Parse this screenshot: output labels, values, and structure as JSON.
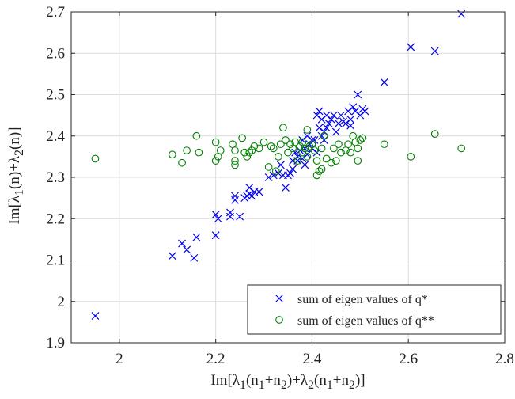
{
  "chart_data": {
    "type": "scatter",
    "xlabel_html": "Im[λ<sub>1</sub>(n<sub>1</sub>+n<sub>2</sub>)+λ<sub>2</sub>(n<sub>1</sub>+n<sub>2</sub>)]",
    "ylabel_html": "Im[λ<sub>1</sub>(n)+λ<sub>2</sub>(n)]",
    "xlim": [
      1.9,
      2.8
    ],
    "ylim": [
      1.9,
      2.7
    ],
    "xticks": [
      2,
      2.2,
      2.4,
      2.6,
      2.8
    ],
    "xtick_labels": [
      "2",
      "2.2",
      "2.4",
      "2.6",
      "2.8"
    ],
    "yticks": [
      1.9,
      2,
      2.1,
      2.2,
      2.3,
      2.4,
      2.5,
      2.6,
      2.7
    ],
    "ytick_labels": [
      "1.9",
      "2",
      "2.1",
      "2.2",
      "2.3",
      "2.4",
      "2.5",
      "2.6",
      "2.7"
    ],
    "grid": true,
    "legend_position": "bottom-right",
    "series": [
      {
        "name": "sum of eigen values of q*",
        "marker": "x",
        "color": "#0000ee",
        "points": [
          [
            1.95,
            1.965
          ],
          [
            2.11,
            2.11
          ],
          [
            2.13,
            2.14
          ],
          [
            2.14,
            2.125
          ],
          [
            2.155,
            2.105
          ],
          [
            2.16,
            2.155
          ],
          [
            2.2,
            2.16
          ],
          [
            2.2,
            2.21
          ],
          [
            2.205,
            2.2
          ],
          [
            2.23,
            2.205
          ],
          [
            2.23,
            2.215
          ],
          [
            2.24,
            2.245
          ],
          [
            2.24,
            2.255
          ],
          [
            2.25,
            2.205
          ],
          [
            2.26,
            2.25
          ],
          [
            2.265,
            2.255
          ],
          [
            2.27,
            2.26
          ],
          [
            2.27,
            2.275
          ],
          [
            2.275,
            2.255
          ],
          [
            2.28,
            2.265
          ],
          [
            2.29,
            2.265
          ],
          [
            2.31,
            2.3
          ],
          [
            2.32,
            2.305
          ],
          [
            2.33,
            2.31
          ],
          [
            2.335,
            2.33
          ],
          [
            2.34,
            2.305
          ],
          [
            2.345,
            2.275
          ],
          [
            2.35,
            2.305
          ],
          [
            2.355,
            2.31
          ],
          [
            2.36,
            2.32
          ],
          [
            2.36,
            2.34
          ],
          [
            2.365,
            2.36
          ],
          [
            2.37,
            2.34
          ],
          [
            2.37,
            2.35
          ],
          [
            2.375,
            2.365
          ],
          [
            2.38,
            2.345
          ],
          [
            2.38,
            2.39
          ],
          [
            2.385,
            2.33
          ],
          [
            2.385,
            2.37
          ],
          [
            2.39,
            2.355
          ],
          [
            2.39,
            2.4
          ],
          [
            2.395,
            2.38
          ],
          [
            2.4,
            2.39
          ],
          [
            2.4,
            2.37
          ],
          [
            2.405,
            2.39
          ],
          [
            2.41,
            2.36
          ],
          [
            2.41,
            2.45
          ],
          [
            2.415,
            2.46
          ],
          [
            2.415,
            2.42
          ],
          [
            2.42,
            2.4
          ],
          [
            2.42,
            2.44
          ],
          [
            2.425,
            2.39
          ],
          [
            2.425,
            2.41
          ],
          [
            2.43,
            2.42
          ],
          [
            2.43,
            2.45
          ],
          [
            2.435,
            2.43
          ],
          [
            2.44,
            2.44
          ],
          [
            2.445,
            2.45
          ],
          [
            2.45,
            2.41
          ],
          [
            2.455,
            2.43
          ],
          [
            2.46,
            2.45
          ],
          [
            2.465,
            2.435
          ],
          [
            2.47,
            2.43
          ],
          [
            2.475,
            2.46
          ],
          [
            2.48,
            2.44
          ],
          [
            2.48,
            2.425
          ],
          [
            2.485,
            2.47
          ],
          [
            2.49,
            2.46
          ],
          [
            2.495,
            2.5
          ],
          [
            2.5,
            2.45
          ],
          [
            2.505,
            2.465
          ],
          [
            2.51,
            2.46
          ],
          [
            2.55,
            2.53
          ],
          [
            2.605,
            2.615
          ],
          [
            2.655,
            2.605
          ],
          [
            2.71,
            2.695
          ]
        ]
      },
      {
        "name": "sum of eigen values of q**",
        "marker": "o",
        "color": "#008000",
        "points": [
          [
            1.95,
            2.345
          ],
          [
            2.11,
            2.355
          ],
          [
            2.13,
            2.335
          ],
          [
            2.14,
            2.365
          ],
          [
            2.16,
            2.4
          ],
          [
            2.165,
            2.36
          ],
          [
            2.2,
            2.34
          ],
          [
            2.2,
            2.385
          ],
          [
            2.205,
            2.35
          ],
          [
            2.21,
            2.365
          ],
          [
            2.235,
            2.38
          ],
          [
            2.24,
            2.34
          ],
          [
            2.24,
            2.33
          ],
          [
            2.24,
            2.365
          ],
          [
            2.255,
            2.395
          ],
          [
            2.26,
            2.36
          ],
          [
            2.265,
            2.35
          ],
          [
            2.27,
            2.36
          ],
          [
            2.275,
            2.365
          ],
          [
            2.28,
            2.375
          ],
          [
            2.29,
            2.37
          ],
          [
            2.3,
            2.385
          ],
          [
            2.31,
            2.325
          ],
          [
            2.315,
            2.375
          ],
          [
            2.32,
            2.37
          ],
          [
            2.325,
            2.315
          ],
          [
            2.33,
            2.35
          ],
          [
            2.335,
            2.38
          ],
          [
            2.34,
            2.42
          ],
          [
            2.345,
            2.39
          ],
          [
            2.35,
            2.36
          ],
          [
            2.355,
            2.38
          ],
          [
            2.36,
            2.37
          ],
          [
            2.365,
            2.385
          ],
          [
            2.37,
            2.34
          ],
          [
            2.375,
            2.375
          ],
          [
            2.38,
            2.36
          ],
          [
            2.38,
            2.385
          ],
          [
            2.385,
            2.37
          ],
          [
            2.39,
            2.415
          ],
          [
            2.39,
            2.35
          ],
          [
            2.395,
            2.375
          ],
          [
            2.4,
            2.38
          ],
          [
            2.405,
            2.365
          ],
          [
            2.41,
            2.305
          ],
          [
            2.41,
            2.34
          ],
          [
            2.415,
            2.315
          ],
          [
            2.42,
            2.32
          ],
          [
            2.42,
            2.37
          ],
          [
            2.425,
            2.4
          ],
          [
            2.43,
            2.345
          ],
          [
            2.44,
            2.335
          ],
          [
            2.445,
            2.37
          ],
          [
            2.45,
            2.34
          ],
          [
            2.455,
            2.38
          ],
          [
            2.46,
            2.36
          ],
          [
            2.47,
            2.365
          ],
          [
            2.475,
            2.38
          ],
          [
            2.48,
            2.36
          ],
          [
            2.485,
            2.4
          ],
          [
            2.49,
            2.385
          ],
          [
            2.495,
            2.37
          ],
          [
            2.495,
            2.34
          ],
          [
            2.5,
            2.39
          ],
          [
            2.505,
            2.395
          ],
          [
            2.55,
            2.38
          ],
          [
            2.605,
            2.35
          ],
          [
            2.655,
            2.405
          ],
          [
            2.71,
            2.37
          ]
        ]
      }
    ]
  }
}
